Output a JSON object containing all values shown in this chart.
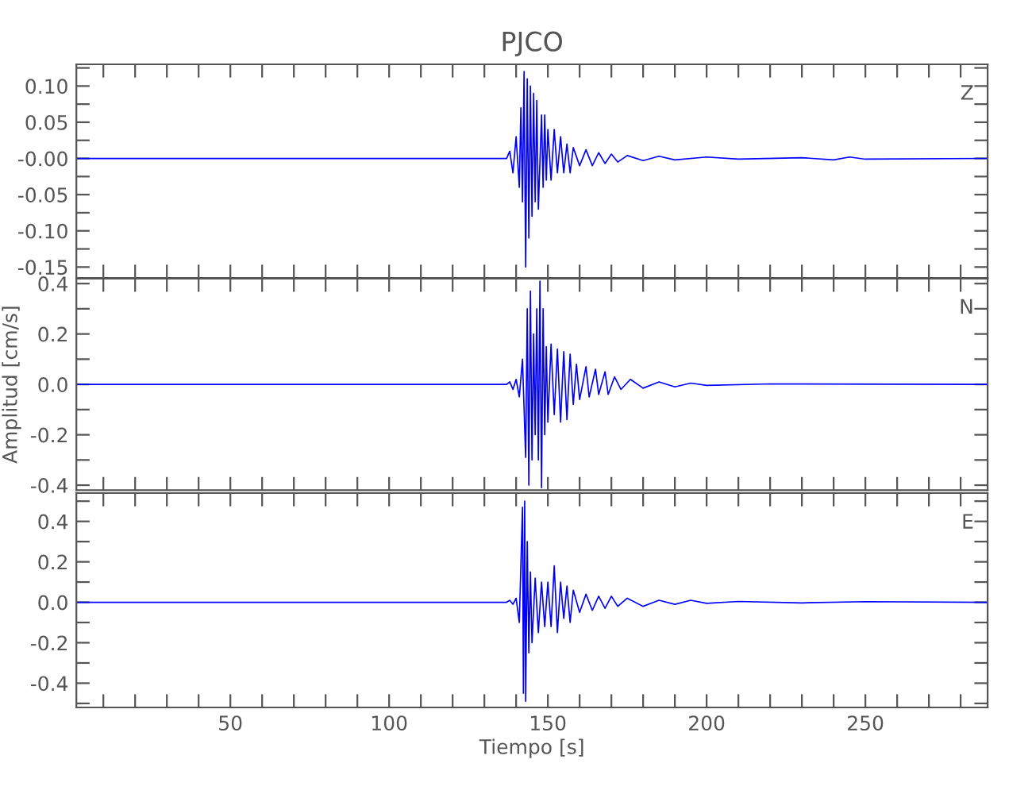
{
  "chart_data": [
    {
      "type": "line",
      "title": "PJCO",
      "annotations": [
        "Z"
      ],
      "tick_labels": "y",
      "xlim": [
        1.5,
        288.5
      ],
      "ylim": [
        -0.165,
        0.13
      ],
      "xticks": [
        {
          "value": 10,
          "label": null
        },
        {
          "value": 20,
          "label": null
        },
        {
          "value": 30,
          "label": null
        },
        {
          "value": 40,
          "label": null
        },
        {
          "value": 50,
          "label": null
        },
        {
          "value": 60,
          "label": null
        },
        {
          "value": 70,
          "label": null
        },
        {
          "value": 80,
          "label": null
        },
        {
          "value": 90,
          "label": null
        },
        {
          "value": 100,
          "label": null
        },
        {
          "value": 110,
          "label": null
        },
        {
          "value": 120,
          "label": null
        },
        {
          "value": 130,
          "label": null
        },
        {
          "value": 140,
          "label": null
        },
        {
          "value": 150,
          "label": null
        },
        {
          "value": 160,
          "label": null
        },
        {
          "value": 170,
          "label": null
        },
        {
          "value": 180,
          "label": null
        },
        {
          "value": 190,
          "label": null
        },
        {
          "value": 200,
          "label": null
        },
        {
          "value": 210,
          "label": null
        },
        {
          "value": 220,
          "label": null
        },
        {
          "value": 230,
          "label": null
        },
        {
          "value": 240,
          "label": null
        },
        {
          "value": 250,
          "label": null
        },
        {
          "value": 260,
          "label": null
        },
        {
          "value": 270,
          "label": null
        },
        {
          "value": 280,
          "label": null
        }
      ],
      "yticks": [
        {
          "value": 0.1,
          "label": "0.10"
        },
        {
          "value": 0.05,
          "label": "0.05"
        },
        {
          "value": 0,
          "label": "-0.00"
        },
        {
          "value": -0.05,
          "label": "-0.05"
        },
        {
          "value": -0.1,
          "label": "-0.10"
        },
        {
          "value": -0.15,
          "label": "-0.15"
        },
        {
          "value": 0.125,
          "label": null
        },
        {
          "value": 0.075,
          "label": null
        },
        {
          "value": 0.025,
          "label": null
        },
        {
          "value": -0.025,
          "label": null
        },
        {
          "value": -0.075,
          "label": null
        },
        {
          "value": -0.125,
          "label": null
        }
      ],
      "series": [
        {
          "color": "#0000ff",
          "x": [
            1.5,
            137,
            138,
            139,
            140,
            141,
            141.5,
            142,
            142.5,
            143,
            143.5,
            144,
            144.5,
            145,
            145.5,
            146,
            146.5,
            147,
            148,
            148.5,
            149,
            149.5,
            150,
            151,
            152,
            153,
            154,
            155,
            156,
            157,
            158,
            160,
            162,
            164,
            166,
            168,
            170,
            172,
            175,
            180,
            185,
            190,
            200,
            210,
            230,
            240,
            245,
            250,
            288
          ],
          "values": [
            0,
            0,
            0.01,
            -0.02,
            0.03,
            -0.04,
            0.07,
            -0.06,
            0.12,
            -0.15,
            0.11,
            -0.11,
            0.1,
            -0.08,
            0.09,
            -0.06,
            0.08,
            -0.07,
            0.06,
            -0.04,
            0.06,
            -0.03,
            0.04,
            -0.03,
            0.04,
            -0.02,
            0.03,
            -0.02,
            0.02,
            -0.02,
            0.015,
            -0.01,
            0.012,
            -0.01,
            0.008,
            -0.007,
            0.006,
            -0.005,
            0.004,
            -0.003,
            0.003,
            -0.002,
            0.002,
            -0.001,
            0.001,
            -0.002,
            0.002,
            -0.001,
            0
          ]
        }
      ]
    },
    {
      "type": "line",
      "ylabel": "Amplitud [cm/s]",
      "annotations": [
        "N"
      ],
      "tick_labels": "y",
      "xlim": [
        1.5,
        288.5
      ],
      "ylim": [
        -0.42,
        0.42
      ],
      "xticks": [
        {
          "value": 10,
          "label": null
        },
        {
          "value": 20,
          "label": null
        },
        {
          "value": 30,
          "label": null
        },
        {
          "value": 40,
          "label": null
        },
        {
          "value": 50,
          "label": null
        },
        {
          "value": 60,
          "label": null
        },
        {
          "value": 70,
          "label": null
        },
        {
          "value": 80,
          "label": null
        },
        {
          "value": 90,
          "label": null
        },
        {
          "value": 100,
          "label": null
        },
        {
          "value": 110,
          "label": null
        },
        {
          "value": 120,
          "label": null
        },
        {
          "value": 130,
          "label": null
        },
        {
          "value": 140,
          "label": null
        },
        {
          "value": 150,
          "label": null
        },
        {
          "value": 160,
          "label": null
        },
        {
          "value": 170,
          "label": null
        },
        {
          "value": 180,
          "label": null
        },
        {
          "value": 190,
          "label": null
        },
        {
          "value": 200,
          "label": null
        },
        {
          "value": 210,
          "label": null
        },
        {
          "value": 220,
          "label": null
        },
        {
          "value": 230,
          "label": null
        },
        {
          "value": 240,
          "label": null
        },
        {
          "value": 250,
          "label": null
        },
        {
          "value": 260,
          "label": null
        },
        {
          "value": 270,
          "label": null
        },
        {
          "value": 280,
          "label": null
        }
      ],
      "yticks": [
        {
          "value": 0.4,
          "label": "0.4"
        },
        {
          "value": 0.2,
          "label": "0.2"
        },
        {
          "value": 0,
          "label": "0.0"
        },
        {
          "value": -0.2,
          "label": "-0.2"
        },
        {
          "value": -0.4,
          "label": "-0.4"
        },
        {
          "value": 0.3,
          "label": null
        },
        {
          "value": 0.1,
          "label": null
        },
        {
          "value": -0.1,
          "label": null
        },
        {
          "value": -0.3,
          "label": null
        }
      ],
      "series": [
        {
          "color": "#0000ff",
          "x": [
            1.5,
            137,
            138,
            139,
            140,
            141,
            142,
            143,
            143.5,
            144,
            144.5,
            145,
            145.5,
            146,
            146.5,
            147,
            147.5,
            148,
            148.5,
            149,
            149.5,
            150,
            151,
            152,
            153,
            154,
            155,
            156,
            157,
            158,
            159,
            160,
            162,
            163,
            165,
            166,
            168,
            169,
            171,
            173,
            176,
            180,
            185,
            190,
            195,
            200,
            220,
            288
          ],
          "values": [
            0,
            0,
            0.01,
            -0.02,
            0.02,
            -0.05,
            0.1,
            -0.29,
            0.3,
            -0.4,
            0.37,
            -0.3,
            0.2,
            -0.2,
            0.3,
            -0.3,
            0.41,
            -0.41,
            0.3,
            -0.2,
            0.15,
            -0.15,
            0.16,
            -0.12,
            0.14,
            -0.15,
            0.13,
            -0.14,
            0.12,
            -0.08,
            0.08,
            -0.06,
            0.07,
            -0.05,
            0.06,
            -0.04,
            0.05,
            -0.04,
            0.03,
            -0.02,
            0.02,
            -0.015,
            0.01,
            -0.01,
            0.005,
            -0.004,
            0.002,
            0
          ]
        }
      ]
    },
    {
      "type": "line",
      "xlabel": "Tiempo [s]",
      "annotations": [
        "E"
      ],
      "xlim": [
        1.5,
        288.5
      ],
      "ylim": [
        -0.52,
        0.54
      ],
      "xticks": [
        {
          "value": 10,
          "label": null
        },
        {
          "value": 20,
          "label": null
        },
        {
          "value": 30,
          "label": null
        },
        {
          "value": 40,
          "label": null
        },
        {
          "value": 50,
          "label": "50"
        },
        {
          "value": 60,
          "label": null
        },
        {
          "value": 70,
          "label": null
        },
        {
          "value": 80,
          "label": null
        },
        {
          "value": 90,
          "label": null
        },
        {
          "value": 100,
          "label": "100"
        },
        {
          "value": 110,
          "label": null
        },
        {
          "value": 120,
          "label": null
        },
        {
          "value": 130,
          "label": null
        },
        {
          "value": 140,
          "label": null
        },
        {
          "value": 150,
          "label": "150"
        },
        {
          "value": 160,
          "label": null
        },
        {
          "value": 170,
          "label": null
        },
        {
          "value": 180,
          "label": null
        },
        {
          "value": 190,
          "label": null
        },
        {
          "value": 200,
          "label": "200"
        },
        {
          "value": 210,
          "label": null
        },
        {
          "value": 220,
          "label": null
        },
        {
          "value": 230,
          "label": null
        },
        {
          "value": 240,
          "label": null
        },
        {
          "value": 250,
          "label": "250"
        },
        {
          "value": 260,
          "label": null
        },
        {
          "value": 270,
          "label": null
        },
        {
          "value": 280,
          "label": null
        }
      ],
      "yticks": [
        {
          "value": 0.4,
          "label": "0.4"
        },
        {
          "value": 0.2,
          "label": "0.2"
        },
        {
          "value": 0,
          "label": "0.0"
        },
        {
          "value": -0.2,
          "label": "-0.2"
        },
        {
          "value": -0.4,
          "label": "-0.4"
        },
        {
          "value": 0.5,
          "label": null
        },
        {
          "value": 0.3,
          "label": null
        },
        {
          "value": 0.1,
          "label": null
        },
        {
          "value": -0.1,
          "label": null
        },
        {
          "value": -0.3,
          "label": null
        },
        {
          "value": -0.5,
          "label": null
        }
      ],
      "series": [
        {
          "color": "#0000ff",
          "x": [
            1.5,
            137,
            138,
            139,
            140,
            141,
            142,
            142.3,
            142.7,
            143,
            143.5,
            144,
            144.5,
            145,
            146,
            147,
            148,
            149,
            150,
            151,
            152,
            153,
            154,
            155,
            156,
            157,
            158,
            160,
            162,
            164,
            166,
            168,
            170,
            172,
            175,
            180,
            185,
            190,
            195,
            200,
            210,
            230,
            250,
            288
          ],
          "values": [
            0,
            0,
            0.01,
            -0.01,
            0.02,
            -0.1,
            0.47,
            -0.45,
            0.5,
            -0.49,
            0.3,
            -0.25,
            0.15,
            -0.2,
            0.12,
            -0.15,
            0.1,
            -0.12,
            0.1,
            -0.12,
            0.18,
            -0.15,
            0.1,
            -0.08,
            0.08,
            -0.1,
            0.06,
            -0.05,
            0.04,
            -0.04,
            0.03,
            -0.03,
            0.03,
            -0.02,
            0.02,
            -0.02,
            0.01,
            -0.01,
            0.01,
            -0.005,
            0.004,
            -0.003,
            0.003,
            0
          ]
        }
      ]
    }
  ]
}
